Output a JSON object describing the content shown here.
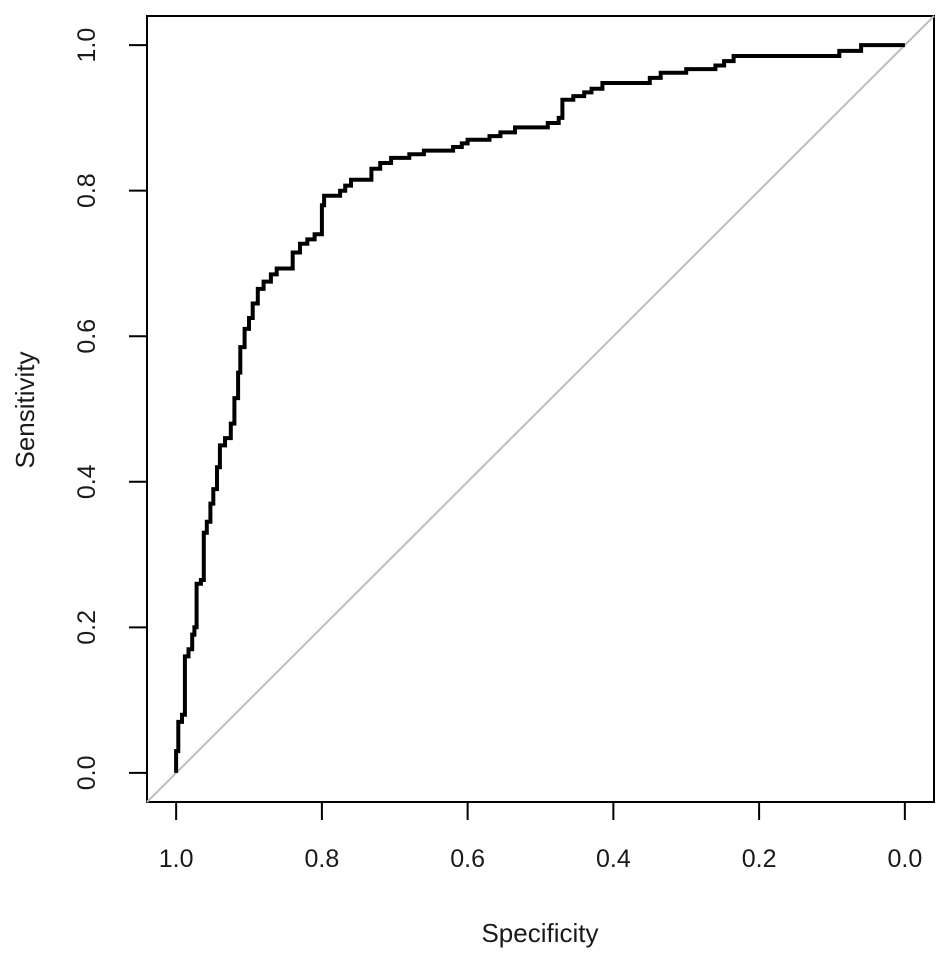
{
  "chart_data": {
    "type": "line",
    "title": "",
    "xlabel": "Specificity",
    "ylabel": "Sensitivity",
    "xlim": [
      1.04,
      -0.04
    ],
    "ylim": [
      -0.04,
      1.04
    ],
    "x_reversed": true,
    "x_ticks": [
      1.0,
      0.8,
      0.6,
      0.4,
      0.2,
      0.0
    ],
    "x_tick_labels": [
      "1.0",
      "0.8",
      "0.6",
      "0.4",
      "0.2",
      "0.0"
    ],
    "y_ticks": [
      0.0,
      0.2,
      0.4,
      0.6,
      0.8,
      1.0
    ],
    "y_tick_labels": [
      "0.0",
      "0.2",
      "0.4",
      "0.6",
      "0.8",
      "1.0"
    ],
    "grid": false,
    "legend": "none",
    "series": [
      {
        "role": "roc-curve",
        "color": "#000000",
        "points": [
          [
            1.0,
            0.0
          ],
          [
            1.0,
            0.03
          ],
          [
            0.997,
            0.03
          ],
          [
            0.997,
            0.07
          ],
          [
            0.992,
            0.07
          ],
          [
            0.992,
            0.08
          ],
          [
            0.988,
            0.08
          ],
          [
            0.988,
            0.16
          ],
          [
            0.983,
            0.16
          ],
          [
            0.983,
            0.17
          ],
          [
            0.978,
            0.17
          ],
          [
            0.978,
            0.19
          ],
          [
            0.975,
            0.19
          ],
          [
            0.975,
            0.2
          ],
          [
            0.972,
            0.2
          ],
          [
            0.972,
            0.26
          ],
          [
            0.966,
            0.26
          ],
          [
            0.966,
            0.265
          ],
          [
            0.962,
            0.265
          ],
          [
            0.962,
            0.33
          ],
          [
            0.958,
            0.33
          ],
          [
            0.958,
            0.345
          ],
          [
            0.953,
            0.345
          ],
          [
            0.953,
            0.37
          ],
          [
            0.949,
            0.37
          ],
          [
            0.949,
            0.39
          ],
          [
            0.944,
            0.39
          ],
          [
            0.944,
            0.42
          ],
          [
            0.94,
            0.42
          ],
          [
            0.94,
            0.45
          ],
          [
            0.933,
            0.45
          ],
          [
            0.933,
            0.46
          ],
          [
            0.925,
            0.46
          ],
          [
            0.925,
            0.48
          ],
          [
            0.92,
            0.48
          ],
          [
            0.92,
            0.515
          ],
          [
            0.915,
            0.515
          ],
          [
            0.915,
            0.55
          ],
          [
            0.912,
            0.55
          ],
          [
            0.912,
            0.585
          ],
          [
            0.906,
            0.585
          ],
          [
            0.906,
            0.61
          ],
          [
            0.9,
            0.61
          ],
          [
            0.9,
            0.625
          ],
          [
            0.895,
            0.625
          ],
          [
            0.895,
            0.645
          ],
          [
            0.888,
            0.645
          ],
          [
            0.888,
            0.665
          ],
          [
            0.88,
            0.665
          ],
          [
            0.88,
            0.675
          ],
          [
            0.87,
            0.675
          ],
          [
            0.87,
            0.685
          ],
          [
            0.862,
            0.685
          ],
          [
            0.862,
            0.693
          ],
          [
            0.84,
            0.693
          ],
          [
            0.84,
            0.715
          ],
          [
            0.83,
            0.715
          ],
          [
            0.83,
            0.727
          ],
          [
            0.82,
            0.727
          ],
          [
            0.82,
            0.733
          ],
          [
            0.81,
            0.733
          ],
          [
            0.81,
            0.74
          ],
          [
            0.8,
            0.74
          ],
          [
            0.8,
            0.78
          ],
          [
            0.797,
            0.78
          ],
          [
            0.797,
            0.793
          ],
          [
            0.775,
            0.793
          ],
          [
            0.775,
            0.8
          ],
          [
            0.768,
            0.8
          ],
          [
            0.768,
            0.807
          ],
          [
            0.76,
            0.807
          ],
          [
            0.76,
            0.815
          ],
          [
            0.732,
            0.815
          ],
          [
            0.732,
            0.83
          ],
          [
            0.72,
            0.83
          ],
          [
            0.72,
            0.838
          ],
          [
            0.705,
            0.838
          ],
          [
            0.705,
            0.845
          ],
          [
            0.68,
            0.845
          ],
          [
            0.68,
            0.85
          ],
          [
            0.66,
            0.85
          ],
          [
            0.66,
            0.855
          ],
          [
            0.62,
            0.855
          ],
          [
            0.62,
            0.86
          ],
          [
            0.608,
            0.86
          ],
          [
            0.608,
            0.865
          ],
          [
            0.6,
            0.865
          ],
          [
            0.6,
            0.87
          ],
          [
            0.57,
            0.87
          ],
          [
            0.57,
            0.875
          ],
          [
            0.555,
            0.875
          ],
          [
            0.555,
            0.88
          ],
          [
            0.535,
            0.88
          ],
          [
            0.535,
            0.887
          ],
          [
            0.49,
            0.887
          ],
          [
            0.49,
            0.893
          ],
          [
            0.475,
            0.893
          ],
          [
            0.475,
            0.9
          ],
          [
            0.47,
            0.9
          ],
          [
            0.47,
            0.925
          ],
          [
            0.455,
            0.925
          ],
          [
            0.455,
            0.93
          ],
          [
            0.44,
            0.93
          ],
          [
            0.44,
            0.935
          ],
          [
            0.43,
            0.935
          ],
          [
            0.43,
            0.94
          ],
          [
            0.415,
            0.94
          ],
          [
            0.415,
            0.948
          ],
          [
            0.35,
            0.948
          ],
          [
            0.35,
            0.955
          ],
          [
            0.335,
            0.955
          ],
          [
            0.335,
            0.962
          ],
          [
            0.3,
            0.962
          ],
          [
            0.3,
            0.967
          ],
          [
            0.26,
            0.967
          ],
          [
            0.26,
            0.972
          ],
          [
            0.248,
            0.972
          ],
          [
            0.248,
            0.978
          ],
          [
            0.235,
            0.978
          ],
          [
            0.235,
            0.985
          ],
          [
            0.09,
            0.985
          ],
          [
            0.09,
            0.992
          ],
          [
            0.06,
            0.992
          ],
          [
            0.06,
            1.0
          ],
          [
            0.0,
            1.0
          ]
        ]
      },
      {
        "role": "reference-diagonal",
        "color": "#bebebe",
        "points": [
          [
            1.04,
            -0.04
          ],
          [
            -0.04,
            1.04
          ]
        ]
      }
    ]
  }
}
